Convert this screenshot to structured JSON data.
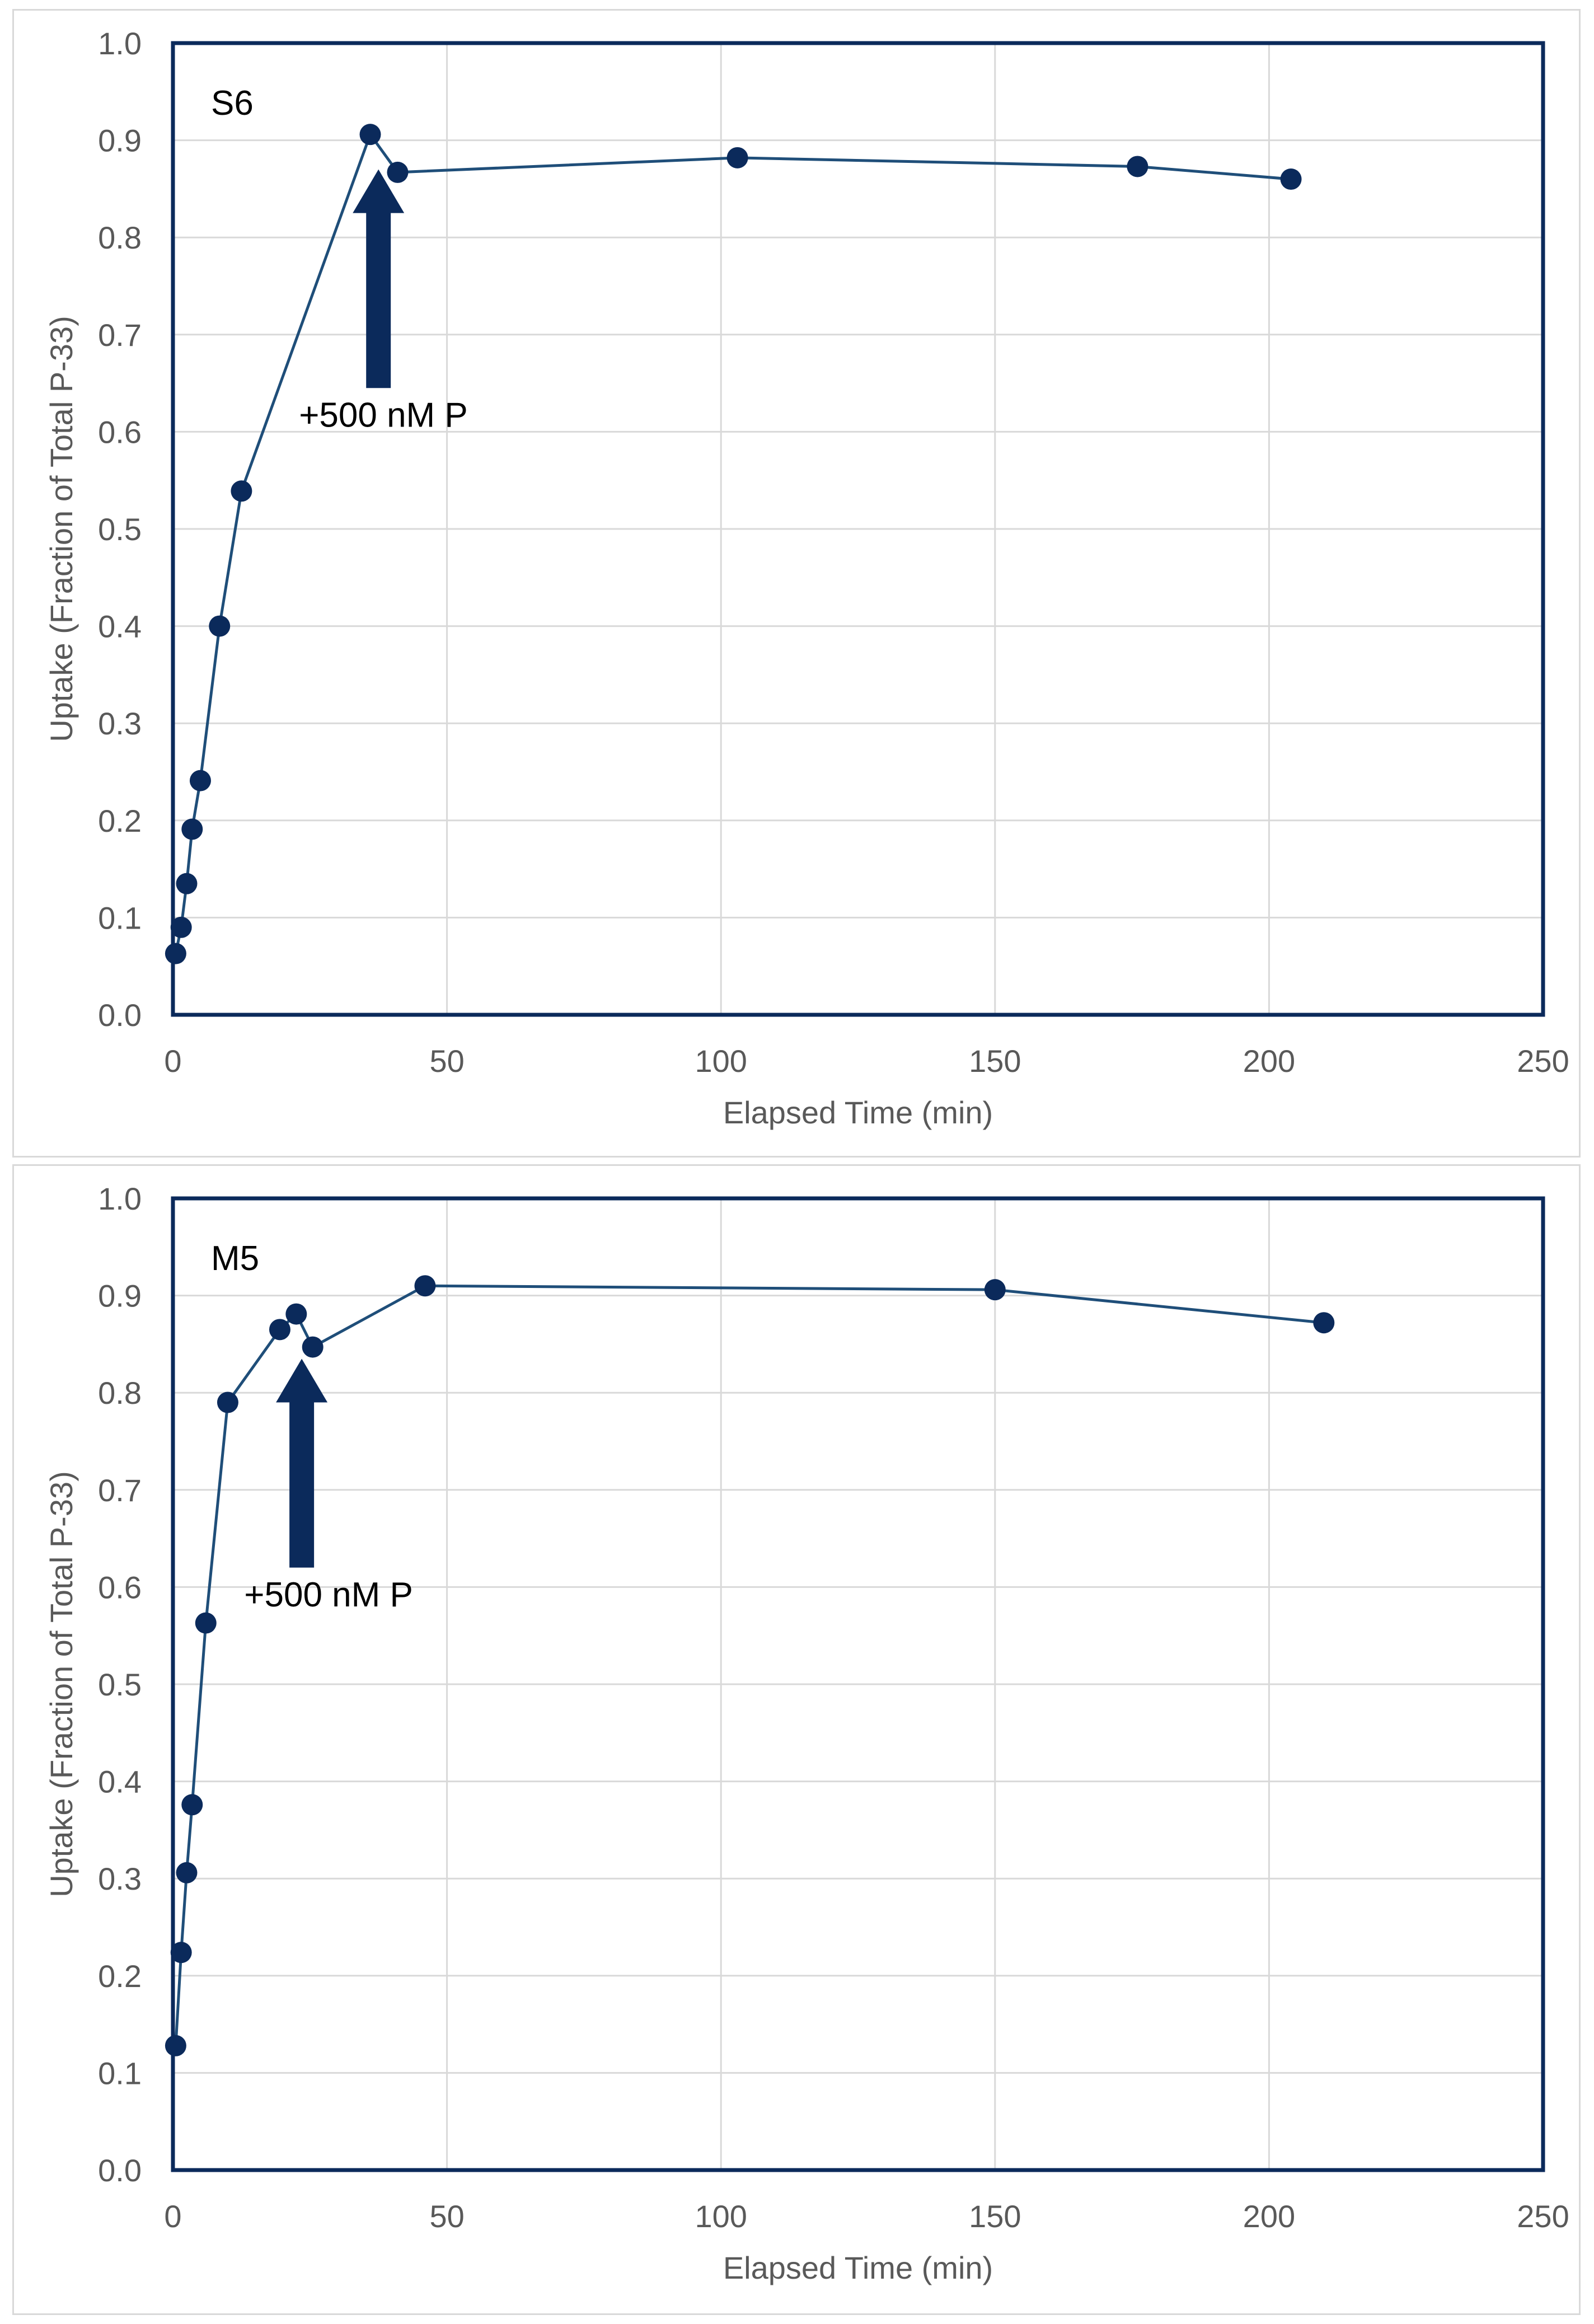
{
  "chart_data": [
    {
      "type": "scatter",
      "panel_label": "S6",
      "xlabel": "Elapsed Time (min)",
      "ylabel": "Uptake (Fraction of Total P-33)",
      "xlim": [
        0,
        250
      ],
      "ylim": [
        0,
        1.0
      ],
      "x_ticks": [
        0,
        50,
        100,
        150,
        200,
        250
      ],
      "x_tick_labels": [
        "0",
        "50",
        "100",
        "150",
        "200",
        "250"
      ],
      "y_ticks": [
        0,
        0.1,
        0.2,
        0.3,
        0.4,
        0.5,
        0.6,
        0.7,
        0.8,
        0.9,
        1.0
      ],
      "y_tick_labels": [
        "0.0",
        "0.1",
        "0.2",
        "0.3",
        "0.4",
        "0.5",
        "0.6",
        "0.7",
        "0.8",
        "0.9",
        "1.0"
      ],
      "grid": true,
      "series": [
        {
          "name": "S6",
          "color": "#1f4e79",
          "marker_color": "#0b2a5b",
          "x": [
            0.5,
            1.5,
            2.5,
            3.5,
            5,
            8.5,
            12.5,
            36,
            41,
            103,
            176,
            204
          ],
          "y": [
            0.063,
            0.09,
            0.135,
            0.191,
            0.241,
            0.4,
            0.539,
            0.906,
            0.867,
            0.882,
            0.873,
            0.86
          ]
        }
      ],
      "annotation": {
        "text": "+500 nM P",
        "arrow_x": 37.5,
        "arrow_tip_y": 0.87,
        "arrow_base_y": 0.645,
        "text_x": 23,
        "text_y": 0.605,
        "color": "#0b2a5b"
      }
    },
    {
      "type": "scatter",
      "panel_label": "M5",
      "xlabel": "Elapsed Time (min)",
      "ylabel": "Uptake (Fraction of Total P-33)",
      "xlim": [
        0,
        250
      ],
      "ylim": [
        0,
        1.0
      ],
      "x_ticks": [
        0,
        50,
        100,
        150,
        200,
        250
      ],
      "x_tick_labels": [
        "0",
        "50",
        "100",
        "150",
        "200",
        "250"
      ],
      "y_ticks": [
        0,
        0.1,
        0.2,
        0.3,
        0.4,
        0.5,
        0.6,
        0.7,
        0.8,
        0.9,
        1.0
      ],
      "y_tick_labels": [
        "0.0",
        "0.1",
        "0.2",
        "0.3",
        "0.4",
        "0.5",
        "0.6",
        "0.7",
        "0.8",
        "0.9",
        "1.0"
      ],
      "grid": true,
      "series": [
        {
          "name": "M5",
          "color": "#1f4e79",
          "marker_color": "#0b2a5b",
          "x": [
            0.5,
            1.5,
            2.5,
            3.5,
            6,
            10,
            19.5,
            22.5,
            25.5,
            46,
            150,
            210
          ],
          "y": [
            0.128,
            0.224,
            0.306,
            0.376,
            0.563,
            0.79,
            0.865,
            0.881,
            0.847,
            0.91,
            0.906,
            0.872
          ]
        }
      ],
      "annotation": {
        "text": "+500 nM P",
        "arrow_x": 23.5,
        "arrow_tip_y": 0.835,
        "arrow_base_y": 0.62,
        "text_x": 13,
        "text_y": 0.58,
        "color": "#0b2a5b"
      }
    }
  ]
}
